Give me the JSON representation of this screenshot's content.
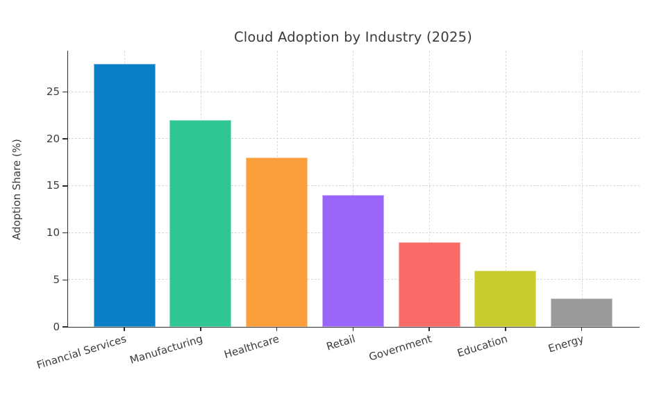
{
  "chart_data": {
    "type": "bar",
    "title": "Cloud Adoption by Industry (2025)",
    "xlabel": "",
    "ylabel": "Adoption Share (%)",
    "categories": [
      "Financial Services",
      "Manufacturing",
      "Healthcare",
      "Retail",
      "Government",
      "Education",
      "Energy"
    ],
    "values": [
      28,
      22,
      18,
      14,
      9,
      6,
      3
    ],
    "bar_colors": [
      "#0b7ec8",
      "#2fc894",
      "#fb9e3c",
      "#9a66f9",
      "#fa6a68",
      "#c9cb2f",
      "#9a9a9a"
    ],
    "yticks": [
      0,
      5,
      10,
      15,
      20,
      25
    ],
    "ylim": [
      0,
      29.4
    ],
    "grid": {
      "horizontal": true,
      "vertical": true,
      "style": "dashed",
      "color": "#d8d8d8"
    },
    "legend": "none",
    "axis_color": "#2b2b2b",
    "text_color": "#3a3a3a",
    "background_color": "#ffffff",
    "x_tick_label_rotation_deg": -17
  }
}
